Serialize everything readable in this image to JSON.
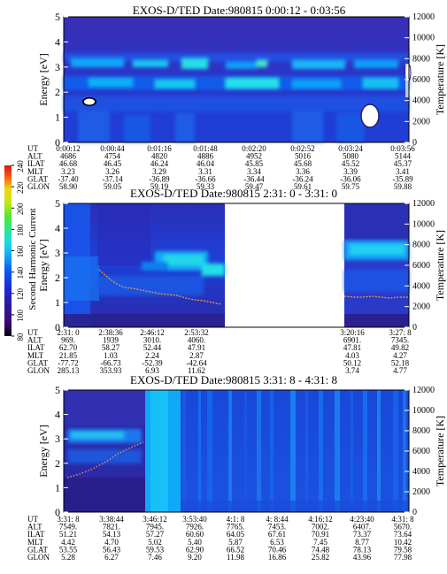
{
  "colorbar": {
    "label": "Second Harmonic Current",
    "ticks": [
      "80",
      "100",
      "120",
      "140",
      "160",
      "180",
      "200",
      "220",
      "240"
    ],
    "colors": [
      "#000000",
      "#3a0a6a",
      "#2a1aa0",
      "#1a2ad8",
      "#0a48f0",
      "#0a78f8",
      "#10b0f8",
      "#18d8e8",
      "#20e8a8",
      "#38e860",
      "#80e820",
      "#c8e810",
      "#f0e010",
      "#f8a010",
      "#f84010",
      "#e01010"
    ]
  },
  "axes": {
    "left_label": "Energy [eV]",
    "right_label": "Temperature [K]",
    "left_ticks": [
      "0",
      "1",
      "2",
      "3",
      "4",
      "5"
    ],
    "right_ticks": [
      "0",
      "2000",
      "4000",
      "6000",
      "8000",
      "10000",
      "12000"
    ]
  },
  "row_labels": [
    "UT",
    "ALT",
    "ILAT",
    "MLT",
    "GLAT",
    "GLON"
  ],
  "panels": [
    {
      "title": "EXOS-D/TED   Date:980815  0:00:12 - 0:03:56",
      "columns": [
        [
          "0:00:12",
          "4686",
          "46.68",
          "3.23",
          "-37.40",
          "58.90"
        ],
        [
          "0:00:44",
          "4754",
          "46.45",
          "3.26",
          "-37.14",
          "59.05"
        ],
        [
          "0:01:16",
          "4820",
          "46.24",
          "3.29",
          "-36.89",
          "59.19"
        ],
        [
          "0:01:48",
          "4886",
          "46.04",
          "3.31",
          "-36.66",
          "59.33"
        ],
        [
          "0:02:20",
          "4952",
          "45.85",
          "3.34",
          "-36.44",
          "59.47"
        ],
        [
          "0:02:52",
          "5016",
          "45.68",
          "3.36",
          "-36.24",
          "59.61"
        ],
        [
          "0:03:24",
          "5080",
          "45.52",
          "3.39",
          "-36.06",
          "59.75"
        ],
        [
          "0:03:56",
          "5144",
          "45.37",
          "3.41",
          "-35.89",
          "59.88"
        ]
      ]
    },
    {
      "title": "EXOS-D/TED   Date:980815  2:31: 0 - 3:31: 0",
      "columns": [
        [
          "2:31: 0",
          "969.",
          "62.70",
          "21.85",
          "-77.72",
          "285.13"
        ],
        [
          "2:38:36",
          "1939",
          "58.27",
          "1.03",
          "-66.73",
          "353.93"
        ],
        [
          "2:46:12",
          "3010.",
          "52.44",
          "2.24",
          "-52.39",
          "6.93"
        ],
        [
          "2:53:32",
          "4060.",
          "47.91",
          "2.87",
          "-42.64",
          "11.62"
        ],
        [
          "3:20:16",
          "6901.",
          "47.81",
          "4.03",
          "50.12",
          "3.74"
        ],
        [
          "3:27: 8",
          "7345.",
          "49.82",
          "4.27",
          "52.18",
          "4.77"
        ]
      ]
    },
    {
      "title": "EXOS-D/TED   Date:980815  3:31: 8 - 4:31: 8",
      "columns": [
        [
          "3:31: 8",
          "7549.",
          "51.21",
          "4.42",
          "53.55",
          "5.28"
        ],
        [
          "3:38:44",
          "7821.",
          "54.13",
          "4.70",
          "56.43",
          "6.27"
        ],
        [
          "3:46:12",
          "7945.",
          "57.27",
          "5.02",
          "59.53",
          "7.46"
        ],
        [
          "3:53:40",
          "7926.",
          "60.60",
          "5.40",
          "62.90",
          "9.20"
        ],
        [
          "4:1: 8",
          "7765.",
          "64.05",
          "5.87",
          "66.52",
          "11.98"
        ],
        [
          "4: 8:44",
          "7453.",
          "67.61",
          "6.53",
          "70.46",
          "16.86"
        ],
        [
          "4:16:12",
          "7002.",
          "70.91",
          "7.45",
          "74.48",
          "25.82"
        ],
        [
          "4:23:40",
          "6407.",
          "73.37",
          "8.77",
          "78.13",
          "43.96"
        ],
        [
          "4:31: 8",
          "5670.",
          "73.64",
          "10.42",
          "79.58",
          "77.98"
        ]
      ]
    }
  ],
  "chart_data": [
    {
      "type": "heatmap",
      "title": "EXOS-D/TED   Date:980815  0:00:12 - 0:03:56",
      "xlabel": "",
      "ylabel": "Energy [eV]",
      "y2label": "Temperature [K]",
      "ylim": [
        0,
        5
      ],
      "y2lim": [
        0,
        12000
      ],
      "x": [
        "0:00:12",
        "0:00:44",
        "0:01:16",
        "0:01:48",
        "0:02:20",
        "0:02:52",
        "0:03:24",
        "0:03:56"
      ],
      "colorbar_range": [
        80,
        240
      ]
    },
    {
      "type": "heatmap",
      "title": "EXOS-D/TED   Date:980815  2:31: 0 - 3:31: 0",
      "xlabel": "",
      "ylabel": "Energy [eV]",
      "y2label": "Temperature [K]",
      "ylim": [
        0,
        5
      ],
      "y2lim": [
        0,
        12000
      ],
      "x": [
        "2:31: 0",
        "2:38:36",
        "2:46:12",
        "2:53:32",
        "3:20:16",
        "3:27: 8"
      ],
      "colorbar_range": [
        80,
        240
      ]
    },
    {
      "type": "heatmap",
      "title": "EXOS-D/TED   Date:980815  3:31: 8 - 4:31: 8",
      "xlabel": "",
      "ylabel": "Energy [eV]",
      "y2label": "Temperature [K]",
      "ylim": [
        0,
        5
      ],
      "y2lim": [
        0,
        12000
      ],
      "x": [
        "3:31: 8",
        "3:38:44",
        "3:46:12",
        "3:53:40",
        "4:1: 8",
        "4: 8:44",
        "4:16:12",
        "4:23:40",
        "4:31: 8"
      ],
      "colorbar_range": [
        80,
        240
      ]
    }
  ]
}
